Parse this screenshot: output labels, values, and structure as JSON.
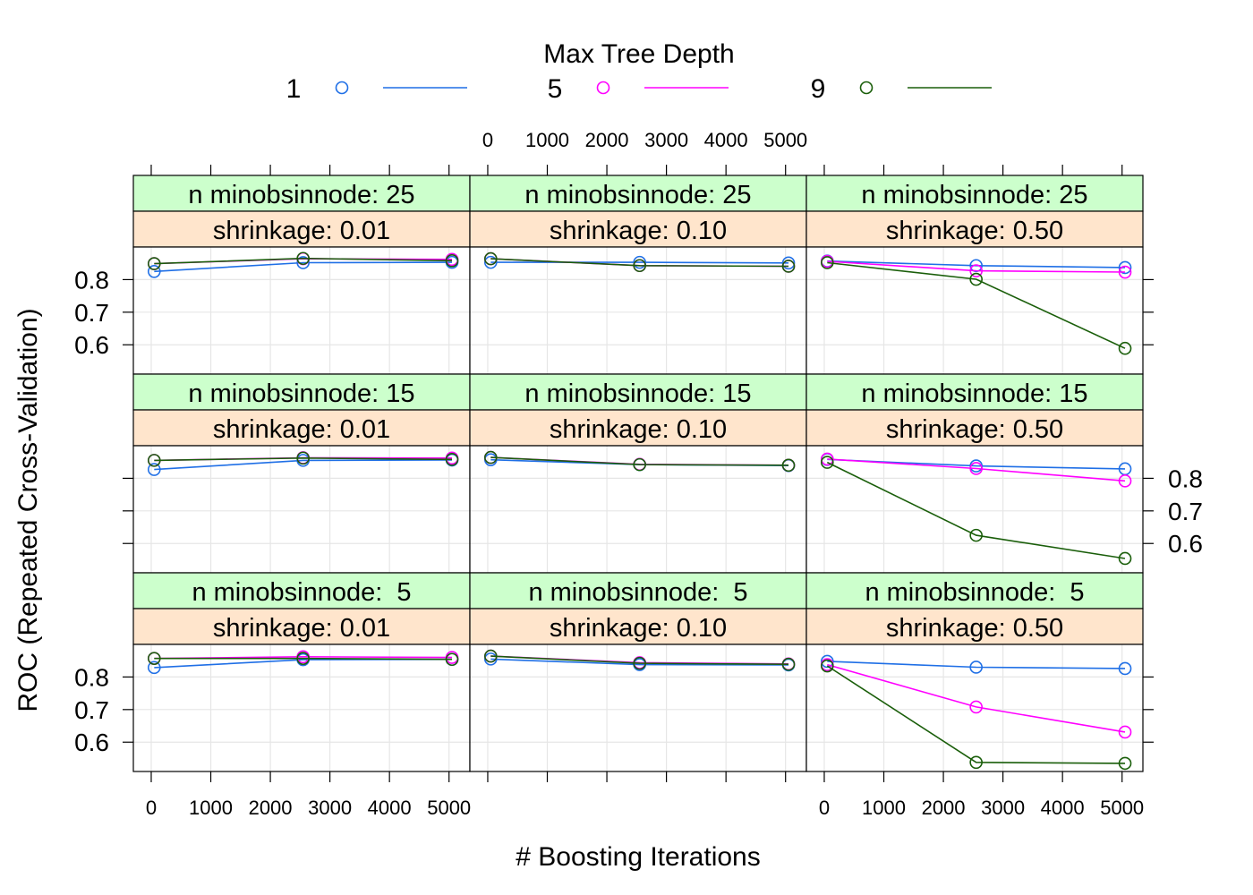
{
  "chart_data": {
    "type": "line",
    "title": "",
    "legend": {
      "title": "Max Tree Depth",
      "placement": "top",
      "entries": [
        {
          "label": "1",
          "color": "#1f6fe6"
        },
        {
          "label": "5",
          "color": "#ff00ff"
        },
        {
          "label": "9",
          "color": "#1a5e0a"
        }
      ]
    },
    "xlabel": "# Boosting Iterations",
    "ylabel": "ROC (Repeated Cross-Validation)",
    "x": [
      50,
      2550,
      5050
    ],
    "xticks": [
      0,
      1000,
      2000,
      3000,
      4000,
      5000
    ],
    "xtick_labels": [
      "0",
      "1000",
      "2000",
      "3000",
      "4000",
      "5000"
    ],
    "xlim": [
      -300,
      5350
    ],
    "yticks": [
      0.6,
      0.7,
      0.8
    ],
    "ytick_labels": [
      "0.6",
      "0.7",
      "0.8"
    ],
    "ylim": [
      0.51,
      0.9
    ],
    "grid": true,
    "strip_colors": {
      "top": "#ccffcc",
      "bottom": "#ffe5cc"
    },
    "panels": [
      {
        "row": 0,
        "col": 0,
        "strip_top": "n minobsinnode: 25",
        "strip_bottom": "shrinkage: 0.01",
        "series": [
          {
            "name": "1",
            "values": [
              0.825,
              0.852,
              0.853
            ]
          },
          {
            "name": "5",
            "values": [
              0.849,
              0.864,
              0.862
            ]
          },
          {
            "name": "9",
            "values": [
              0.849,
              0.865,
              0.858
            ]
          }
        ]
      },
      {
        "row": 0,
        "col": 1,
        "strip_top": "n minobsinnode: 25",
        "strip_bottom": "shrinkage: 0.10",
        "series": [
          {
            "name": "1",
            "values": [
              0.853,
              0.853,
              0.851
            ]
          },
          {
            "name": "5",
            "values": [
              0.864,
              0.843,
              0.841
            ]
          },
          {
            "name": "9",
            "values": [
              0.864,
              0.843,
              0.841
            ]
          }
        ]
      },
      {
        "row": 0,
        "col": 2,
        "strip_top": "n minobsinnode: 25",
        "strip_bottom": "shrinkage: 0.50",
        "series": [
          {
            "name": "1",
            "values": [
              0.857,
              0.843,
              0.837
            ]
          },
          {
            "name": "5",
            "values": [
              0.856,
              0.827,
              0.823
            ]
          },
          {
            "name": "9",
            "values": [
              0.852,
              0.801,
              0.589
            ]
          }
        ]
      },
      {
        "row": 1,
        "col": 0,
        "strip_top": "n minobsinnode: 15",
        "strip_bottom": "shrinkage: 0.01",
        "series": [
          {
            "name": "1",
            "values": [
              0.827,
              0.855,
              0.856
            ]
          },
          {
            "name": "5",
            "values": [
              0.855,
              0.863,
              0.862
            ]
          },
          {
            "name": "9",
            "values": [
              0.855,
              0.862,
              0.858
            ]
          }
        ]
      },
      {
        "row": 1,
        "col": 1,
        "strip_top": "n minobsinnode: 15",
        "strip_bottom": "shrinkage: 0.10",
        "series": [
          {
            "name": "1",
            "values": [
              0.857,
              0.842,
              0.839
            ]
          },
          {
            "name": "5",
            "values": [
              0.864,
              0.843,
              0.84
            ]
          },
          {
            "name": "9",
            "values": [
              0.864,
              0.842,
              0.84
            ]
          }
        ]
      },
      {
        "row": 1,
        "col": 2,
        "strip_top": "n minobsinnode: 15",
        "strip_bottom": "shrinkage: 0.50",
        "series": [
          {
            "name": "1",
            "values": [
              0.858,
              0.838,
              0.829
            ]
          },
          {
            "name": "5",
            "values": [
              0.859,
              0.83,
              0.792
            ]
          },
          {
            "name": "9",
            "values": [
              0.849,
              0.625,
              0.554
            ]
          }
        ]
      },
      {
        "row": 2,
        "col": 0,
        "strip_top": "n minobsinnode:  5",
        "strip_bottom": "shrinkage: 0.01",
        "series": [
          {
            "name": "1",
            "values": [
              0.829,
              0.853,
              0.854
            ]
          },
          {
            "name": "5",
            "values": [
              0.857,
              0.862,
              0.86
            ]
          },
          {
            "name": "9",
            "values": [
              0.857,
              0.857,
              0.854
            ]
          }
        ]
      },
      {
        "row": 2,
        "col": 1,
        "strip_top": "n minobsinnode:  5",
        "strip_bottom": "shrinkage: 0.10",
        "series": [
          {
            "name": "1",
            "values": [
              0.855,
              0.838,
              0.837
            ]
          },
          {
            "name": "5",
            "values": [
              0.864,
              0.844,
              0.84
            ]
          },
          {
            "name": "9",
            "values": [
              0.864,
              0.842,
              0.839
            ]
          }
        ]
      },
      {
        "row": 2,
        "col": 2,
        "strip_top": "n minobsinnode:  5",
        "strip_bottom": "shrinkage: 0.50",
        "series": [
          {
            "name": "1",
            "values": [
              0.848,
              0.83,
              0.826
            ]
          },
          {
            "name": "5",
            "values": [
              0.838,
              0.708,
              0.631
            ]
          },
          {
            "name": "9",
            "values": [
              0.834,
              0.538,
              0.535
            ]
          }
        ]
      }
    ]
  }
}
